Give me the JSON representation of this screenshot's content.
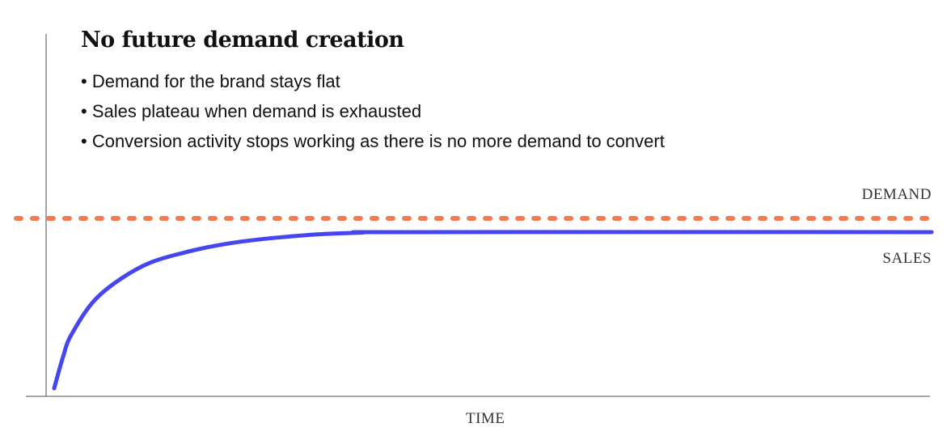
{
  "chart_data": {
    "type": "line",
    "title": "No future demand creation",
    "bullets": [
      "• Demand for the brand stays flat",
      "• Sales plateau when demand is exhausted",
      "• Conversion activity stops working as there is no more demand to convert"
    ],
    "xlabel": "TIME",
    "ylabel": "",
    "xlim": [
      0,
      100
    ],
    "ylim": [
      0,
      1
    ],
    "grid": false,
    "series": [
      {
        "name": "DEMAND",
        "color": "#f47a50",
        "style": "dashed",
        "x": [
          0,
          100
        ],
        "y": [
          1,
          1
        ]
      },
      {
        "name": "SALES",
        "color": "#4646f0",
        "style": "solid",
        "x": [
          0,
          1,
          2,
          5,
          10,
          15,
          20,
          25,
          30,
          35,
          40,
          100
        ],
        "y": [
          0.045,
          0.22,
          0.35,
          0.56,
          0.73,
          0.81,
          0.86,
          0.89,
          0.91,
          0.92,
          0.923,
          0.923
        ]
      }
    ]
  }
}
